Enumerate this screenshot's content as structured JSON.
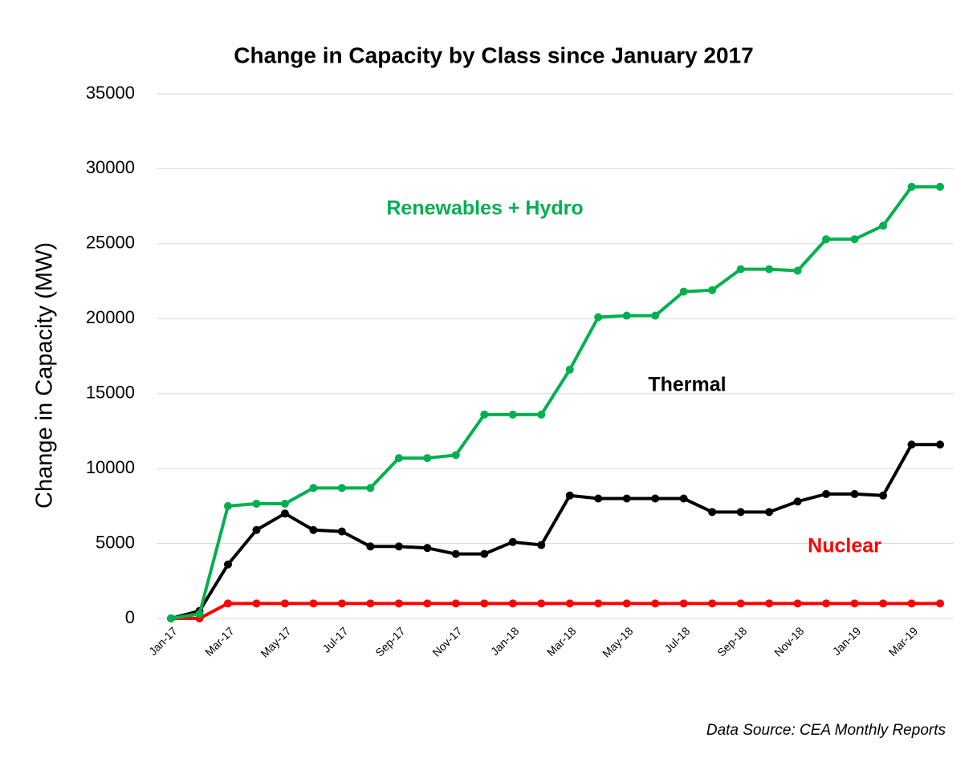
{
  "chart_data": {
    "type": "line",
    "title": "Change in Capacity by Class since January 2017",
    "y_label": "Change in Capacity (MW)",
    "source": "Data Source: CEA Monthly Reports",
    "categories": [
      "Jan-17",
      null,
      "Mar-17",
      null,
      "May-17",
      null,
      "Jul-17",
      null,
      "Sep-17",
      null,
      "Nov-17",
      null,
      "Jan-18",
      null,
      "Mar-18",
      null,
      "May-18",
      null,
      "Jul-18",
      null,
      "Sep-18",
      null,
      "Nov-18",
      null,
      "Jan-19",
      null,
      "Mar-19",
      null
    ],
    "series": [
      {
        "name": "Renewables + Hydro",
        "color": "#00b050",
        "values": [
          0,
          300,
          7500,
          7650,
          7650,
          8700,
          8700,
          8700,
          10700,
          10700,
          10900,
          13600,
          13600,
          13600,
          16600,
          20100,
          20200,
          20200,
          21800,
          21900,
          23300,
          23300,
          23200,
          25300,
          25300,
          26200,
          28800,
          28800
        ]
      },
      {
        "name": "Thermal",
        "color": "#000000",
        "values": [
          0,
          500,
          3600,
          5900,
          7000,
          5900,
          5800,
          4800,
          4800,
          4700,
          4300,
          4300,
          5100,
          4900,
          8200,
          8000,
          8000,
          8000,
          8000,
          7100,
          7100,
          7100,
          7800,
          8300,
          8300,
          8200,
          11600,
          11600
        ]
      },
      {
        "name": "Nuclear",
        "color": "#ff0000",
        "values": [
          0,
          0,
          1000,
          1000,
          1000,
          1000,
          1000,
          1000,
          1000,
          1000,
          1000,
          1000,
          1000,
          1000,
          1000,
          1000,
          1000,
          1000,
          1000,
          1000,
          1000,
          1000,
          1000,
          1000,
          1000,
          1000,
          1000,
          1000
        ]
      }
    ],
    "ylim": [
      0,
      35000
    ],
    "yticks": [
      0,
      5000,
      10000,
      15000,
      20000,
      25000,
      30000,
      35000
    ],
    "grid": true
  }
}
